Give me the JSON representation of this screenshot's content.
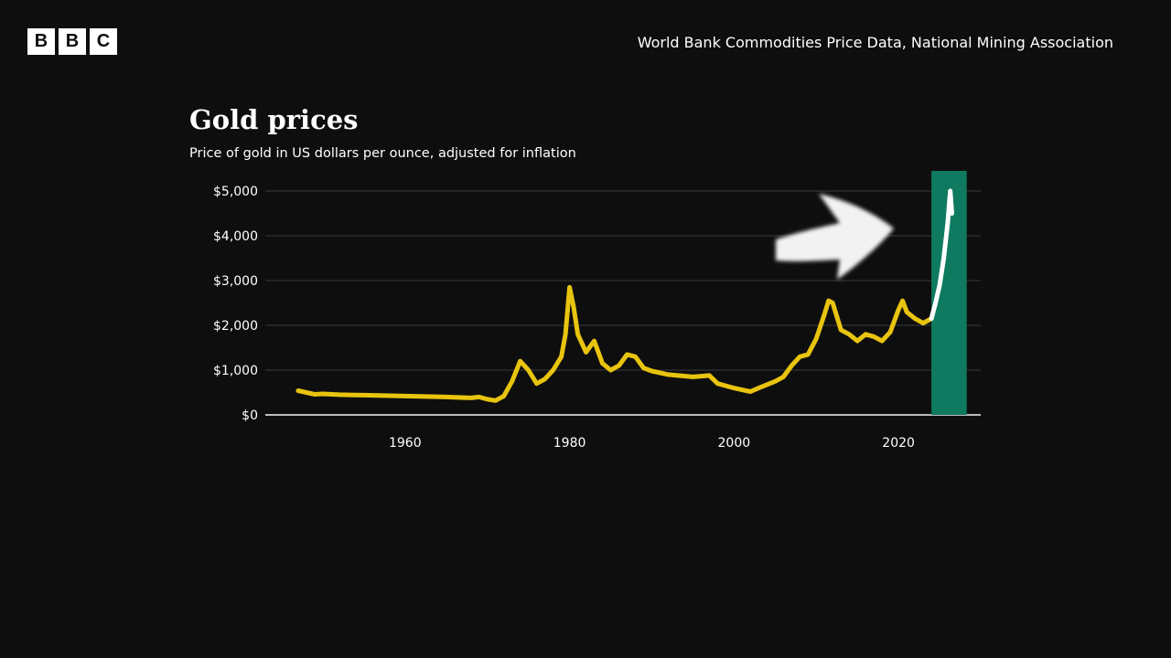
{
  "brand": {
    "letters": [
      "B",
      "B",
      "C"
    ]
  },
  "source": "World Bank Commodities Price Data, National Mining Association",
  "colors": {
    "background": "#0f0e0e",
    "line": "#e8c40f",
    "highlight_line": "#ffffff",
    "highlight_band": "#0f7a5f",
    "grid": "#3a3a3a"
  },
  "chart_data": {
    "type": "line",
    "title": "Gold prices",
    "subtitle": "Price of gold in US dollars per ounce, adjusted for inflation",
    "xlabel": "",
    "ylabel": "",
    "xlim": [
      1943,
      2030
    ],
    "ylim": [
      0,
      5000
    ],
    "x_ticks": [
      1960,
      1980,
      2000,
      2020
    ],
    "y_ticks": [
      0,
      1000,
      2000,
      3000,
      4000,
      5000
    ],
    "y_tick_labels": [
      "$0",
      "$1,000",
      "$2,000",
      "$3,000",
      "$4,000",
      "$5,000"
    ],
    "grid": true,
    "highlight_range": [
      2024,
      2028.3
    ],
    "series": [
      {
        "x": [
          1947,
          1948,
          1949,
          1950,
          1952,
          1955,
          1960,
          1965,
          1968,
          1969,
          1970,
          1971,
          1972,
          1973,
          1974,
          1974.5,
          1975,
          1976,
          1977,
          1978,
          1979,
          1979.5,
          1980,
          1980.5,
          1981,
          1982,
          1983,
          1984,
          1985,
          1986,
          1987,
          1988,
          1989,
          1990,
          1992,
          1995,
          1997,
          1998,
          2000,
          2001,
          2002,
          2003,
          2005,
          2006,
          2007,
          2008,
          2009,
          2010,
          2011,
          2011.5,
          2012,
          2013,
          2014,
          2015,
          2016,
          2017,
          2018,
          2019,
          2020,
          2020.5,
          2021,
          2022,
          2023,
          2024
        ],
        "y": [
          540,
          500,
          460,
          470,
          450,
          440,
          420,
          400,
          380,
          400,
          350,
          320,
          420,
          750,
          1200,
          1100,
          1000,
          700,
          800,
          1000,
          1300,
          1800,
          2850,
          2400,
          1800,
          1400,
          1650,
          1150,
          1000,
          1100,
          1350,
          1300,
          1050,
          980,
          900,
          850,
          880,
          700,
          600,
          560,
          520,
          600,
          750,
          850,
          1100,
          1300,
          1350,
          1700,
          2250,
          2550,
          2500,
          1900,
          1800,
          1650,
          1800,
          1750,
          1650,
          1850,
          2350,
          2550,
          2300,
          2150,
          2050,
          2150
        ]
      },
      {
        "x": [
          2024,
          2024.5,
          2025,
          2025.5,
          2026,
          2026.3,
          2026.5
        ],
        "y": [
          2150,
          2500,
          2900,
          3500,
          4300,
          5000,
          4500
        ]
      }
    ]
  }
}
